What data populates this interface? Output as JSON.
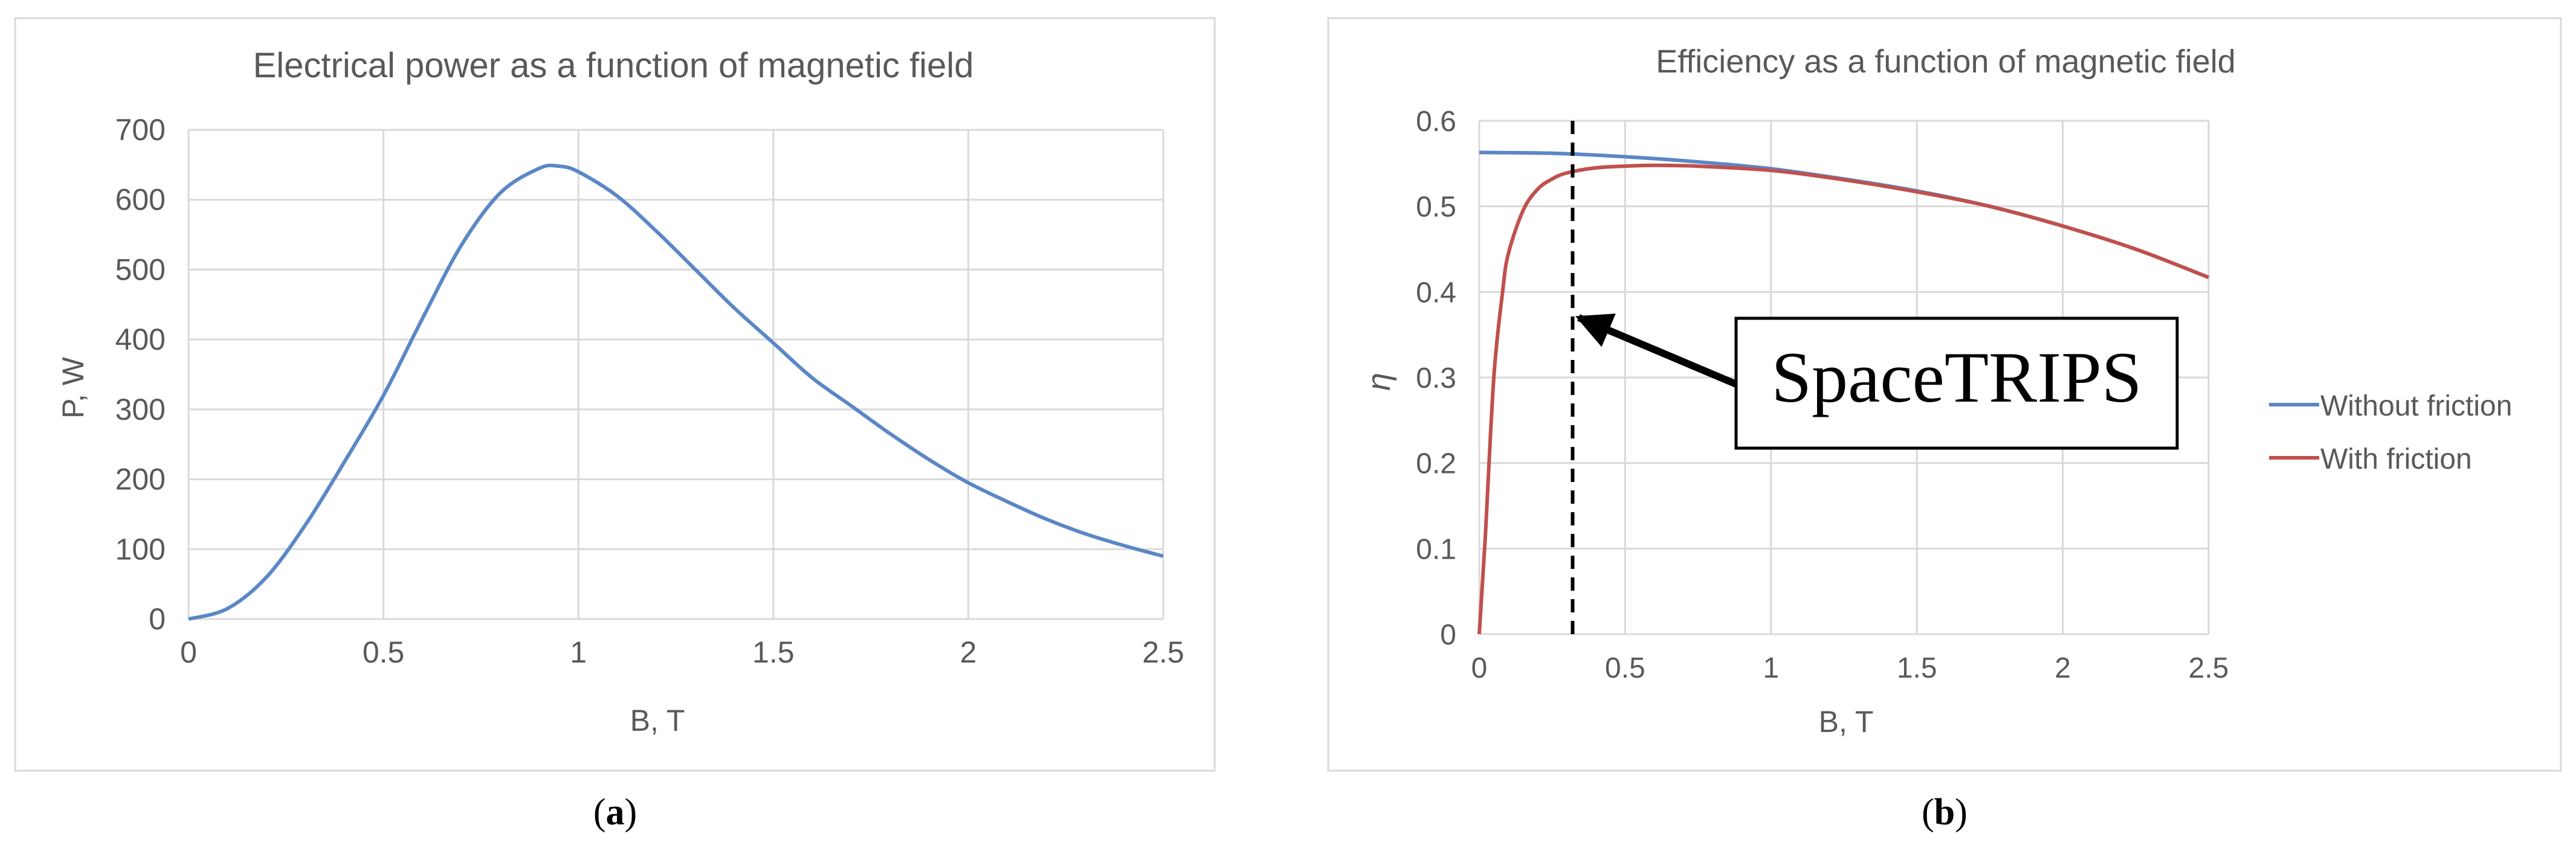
{
  "panels": [
    {
      "caption_open": "(",
      "caption_letter": "a",
      "caption_close": ")"
    },
    {
      "caption_open": "(",
      "caption_letter": "b",
      "caption_close": ")"
    }
  ],
  "chart_data": [
    {
      "type": "line",
      "title": "Electrical power as a function of magnetic field",
      "xlabel": "B, T",
      "ylabel": "P, W",
      "xlim": [
        0,
        2.5
      ],
      "ylim": [
        0,
        700
      ],
      "xticks": [
        0,
        0.5,
        1,
        1.5,
        2,
        2.5
      ],
      "xtick_labels": [
        "0",
        "0.5",
        "1",
        "1.5",
        "2",
        "2.5"
      ],
      "yticks": [
        0,
        100,
        200,
        300,
        400,
        500,
        600,
        700
      ],
      "ytick_labels": [
        "0",
        "100",
        "200",
        "300",
        "400",
        "500",
        "600",
        "700"
      ],
      "grid": true,
      "series": [
        {
          "name": "P",
          "color": "#5B87C6",
          "x": [
            0,
            0.1,
            0.2,
            0.3,
            0.4,
            0.5,
            0.6,
            0.7,
            0.8,
            0.9,
            0.95,
            1.0,
            1.1,
            1.2,
            1.3,
            1.4,
            1.5,
            1.6,
            1.7,
            1.8,
            1.9,
            2.0,
            2.1,
            2.2,
            2.3,
            2.4,
            2.5
          ],
          "y": [
            0,
            15,
            60,
            135,
            225,
            320,
            430,
            535,
            610,
            645,
            648,
            640,
            605,
            555,
            500,
            445,
            395,
            345,
            305,
            265,
            228,
            195,
            168,
            143,
            122,
            105,
            90
          ]
        }
      ]
    },
    {
      "type": "line",
      "title": "Efficiency as a function of magnetic field",
      "xlabel": "B, T",
      "ylabel": "η",
      "xlim": [
        0,
        2.5
      ],
      "ylim": [
        0,
        0.6
      ],
      "xticks": [
        0,
        0.5,
        1,
        1.5,
        2,
        2.5
      ],
      "xtick_labels": [
        "0",
        "0.5",
        "1",
        "1.5",
        "2",
        "2.5"
      ],
      "yticks": [
        0,
        0.1,
        0.2,
        0.3,
        0.4,
        0.5,
        0.6
      ],
      "ytick_labels": [
        "0",
        "0.1",
        "0.2",
        "0.3",
        "0.4",
        "0.5",
        "0.6"
      ],
      "grid": true,
      "legend_position": "right",
      "series": [
        {
          "name": "Without friction",
          "color": "#5B87C6",
          "x": [
            0,
            0.25,
            0.5,
            0.75,
            1.0,
            1.25,
            1.5,
            1.75,
            2.0,
            2.25,
            2.5
          ],
          "y": [
            0.563,
            0.562,
            0.558,
            0.552,
            0.544,
            0.532,
            0.518,
            0.5,
            0.477,
            0.45,
            0.417
          ]
        },
        {
          "name": "With friction",
          "color": "#C0504D",
          "x": [
            0,
            0.02,
            0.05,
            0.08,
            0.1,
            0.15,
            0.2,
            0.25,
            0.3,
            0.4,
            0.5,
            0.6,
            0.75,
            1.0,
            1.25,
            1.5,
            1.75,
            2.0,
            2.25,
            2.5
          ],
          "y": [
            0,
            0.11,
            0.3,
            0.4,
            0.445,
            0.495,
            0.52,
            0.532,
            0.539,
            0.545,
            0.547,
            0.548,
            0.547,
            0.542,
            0.531,
            0.517,
            0.5,
            0.477,
            0.45,
            0.417
          ]
        }
      ],
      "marker_line": {
        "x": 0.32,
        "style": "dashed"
      },
      "annotation": {
        "text": "SpaceTRIPS",
        "points_to": {
          "x": 0.32,
          "y": 0.37
        }
      }
    }
  ]
}
